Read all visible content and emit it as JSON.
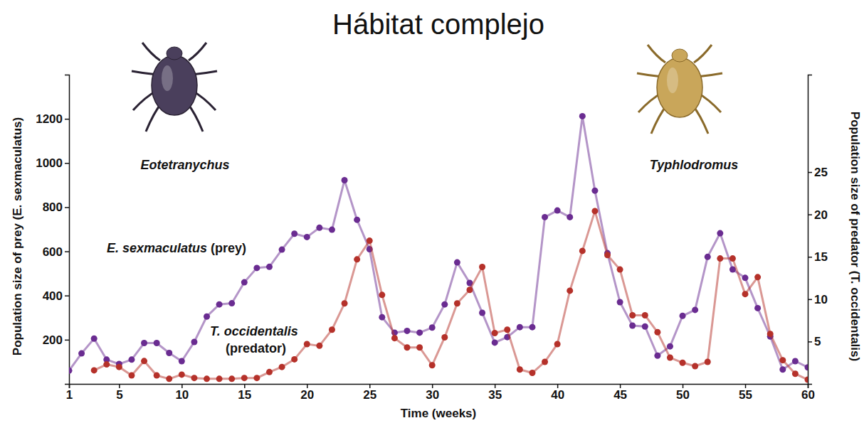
{
  "chart_data": {
    "type": "line",
    "title": "Hábitat complejo",
    "x_label": "Time (weeks)",
    "y_label": "Population size of prey (E. sexmaculatus)",
    "y2_label": "Population size of predator (T. occidentalis)",
    "x": [
      1,
      2,
      3,
      4,
      5,
      6,
      7,
      8,
      9,
      10,
      11,
      12,
      13,
      14,
      15,
      16,
      17,
      18,
      19,
      20,
      21,
      22,
      23,
      24,
      25,
      26,
      27,
      28,
      29,
      30,
      31,
      32,
      33,
      34,
      35,
      36,
      37,
      38,
      39,
      40,
      41,
      42,
      43,
      44,
      45,
      46,
      47,
      48,
      49,
      50,
      51,
      52,
      53,
      54,
      55,
      56,
      57,
      58,
      59,
      60
    ],
    "xlim": [
      1,
      60
    ],
    "xticks": [
      1,
      5,
      10,
      15,
      20,
      25,
      30,
      35,
      40,
      45,
      50,
      55,
      60
    ],
    "ylim": [
      0,
      1400
    ],
    "yticks": [
      200,
      400,
      600,
      800,
      1000,
      1200
    ],
    "y2lim": [
      0,
      36.5
    ],
    "y2ticks": [
      5,
      10,
      15,
      20,
      25
    ],
    "grid": false,
    "series": [
      {
        "name": "E. sexmaculatus (prey)",
        "color": "#6a2c91",
        "marker": "circle",
        "line_style": "solid",
        "values": [
          60,
          138,
          205,
          110,
          90,
          110,
          185,
          185,
          140,
          103,
          190,
          305,
          360,
          365,
          460,
          525,
          530,
          608,
          680,
          665,
          707,
          698,
          922,
          743,
          610,
          302,
          232,
          240,
          232,
          255,
          360,
          550,
          457,
          322,
          187,
          212,
          257,
          257,
          755,
          785,
          755,
          1212,
          875,
          592,
          370,
          264,
          260,
          128,
          170,
          308,
          335,
          575,
          682,
          518,
          480,
          343,
          215,
          65,
          103,
          75
        ]
      },
      {
        "name": "T. occidentalis (predator)",
        "color": "#b5312a",
        "marker": "circle",
        "line_style": "solid",
        "axis": "y2",
        "values": [
          null,
          null,
          1.6,
          2.3,
          2.0,
          1.0,
          2.7,
          1.0,
          0.6,
          1.1,
          0.7,
          0.6,
          0.6,
          0.6,
          0.7,
          0.7,
          1.4,
          2.0,
          2.9,
          4.7,
          4.5,
          6.4,
          9.5,
          14.7,
          16.9,
          10.5,
          5.4,
          4.3,
          4.3,
          2.2,
          5.5,
          9.5,
          11.1,
          13.8,
          6.0,
          6.4,
          1.7,
          1.3,
          2.6,
          4.7,
          11.0,
          15.7,
          20.4,
          15.2,
          13.5,
          8.1,
          8.1,
          6.1,
          3.1,
          2.5,
          2.1,
          2.6,
          14.8,
          14.8,
          10.6,
          12.6,
          5.9,
          2.8,
          1.2,
          0.5
        ]
      }
    ],
    "annotations": [
      {
        "text": "Eotetranychus"
      },
      {
        "text": "Typhlodromus"
      }
    ]
  }
}
